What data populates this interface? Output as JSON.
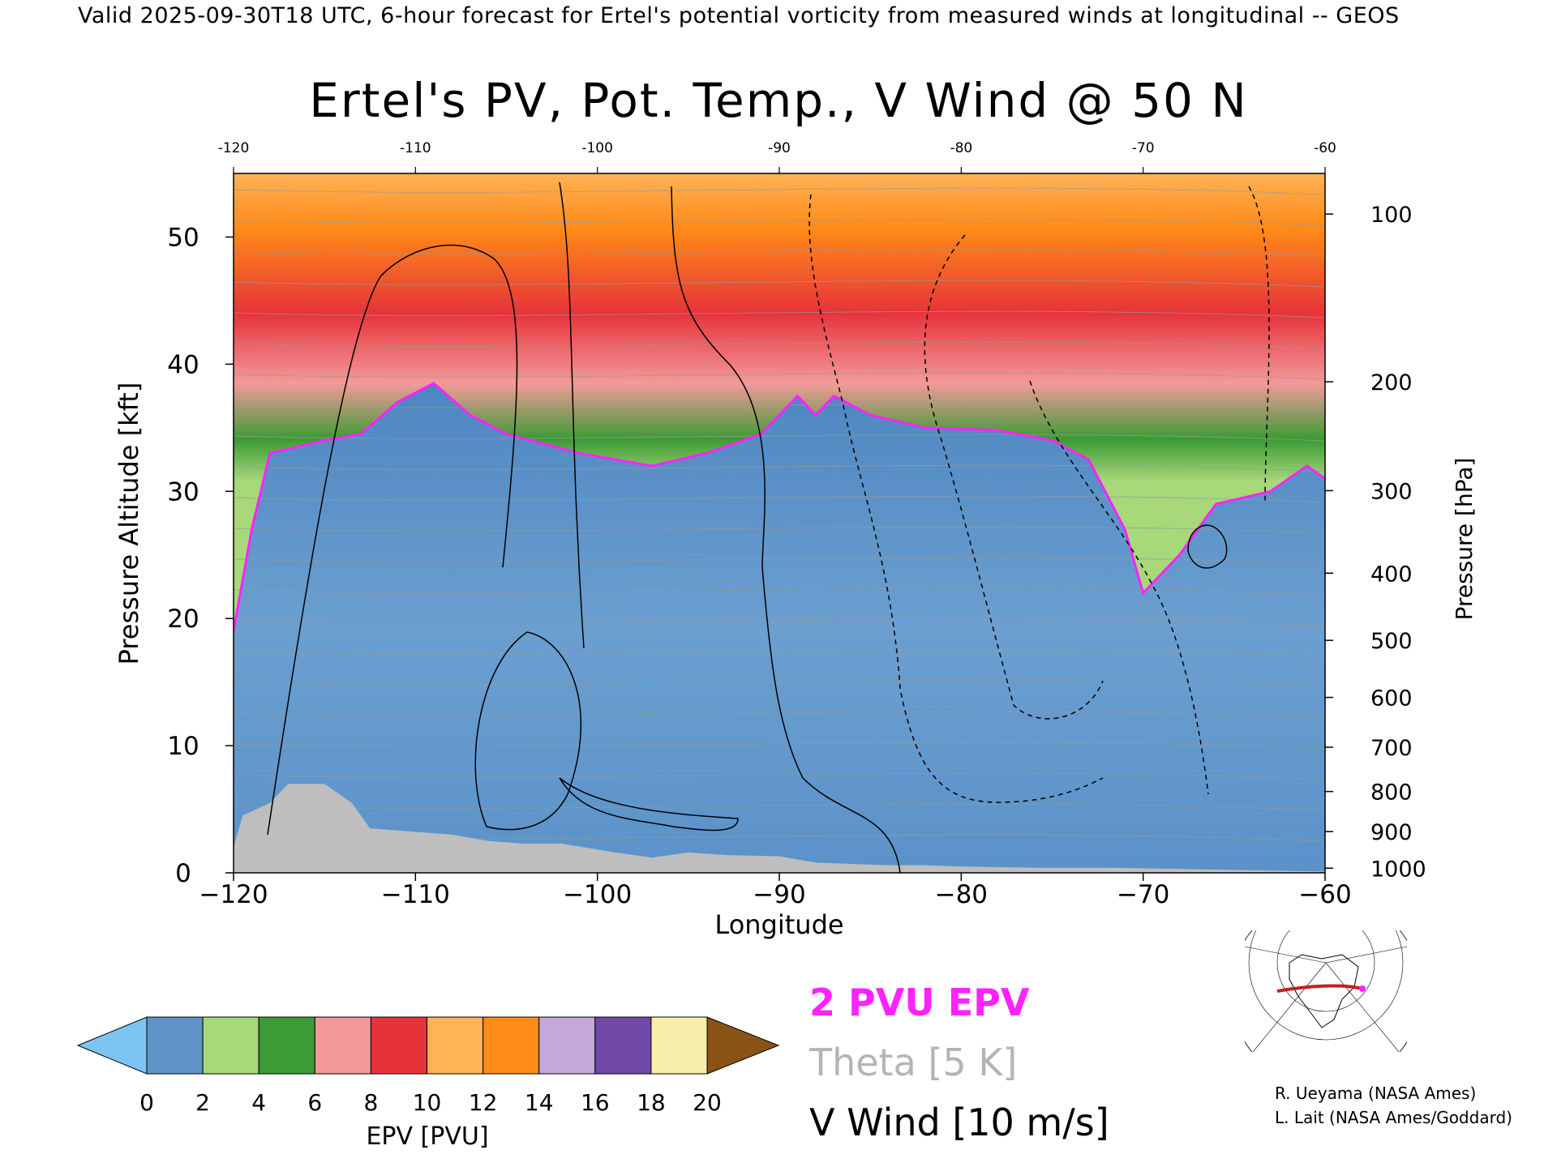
{
  "header": {
    "text": "Valid 2025-09-30T18 UTC, 6-hour forecast for Ertel's potential vorticity from measured winds at longitudinal -- GEOS"
  },
  "chart_data": {
    "type": "heatmap",
    "title": "Ertel's PV, Pot. Temp., V Wind @ 50 N",
    "xlabel": "Longitude",
    "ylabel": "Pressure Altitude [kft]",
    "y2label": "Pressure [hPa]",
    "xlim": [
      -120,
      -60
    ],
    "ylim": [
      0,
      55
    ],
    "x_ticks": [
      -120,
      -110,
      -100,
      -90,
      -80,
      -70,
      -60
    ],
    "x_tick_labels": [
      "−120",
      "−110",
      "−100",
      "−90",
      "−80",
      "−70",
      "−60"
    ],
    "top_ticks": [
      -120,
      -110,
      -100,
      -90,
      -80,
      -70,
      -60
    ],
    "top_tick_labels": [
      "-120",
      "-110",
      "-100",
      "-90",
      "-80",
      "-70",
      "-60"
    ],
    "y_ticks": [
      0,
      10,
      20,
      30,
      40,
      50
    ],
    "y_tick_labels": [
      "0",
      "10",
      "20",
      "30",
      "40",
      "50"
    ],
    "pressure_ticks": [
      {
        "hpa": 100,
        "label": "100"
      },
      {
        "hpa": 200,
        "label": "200"
      },
      {
        "hpa": 300,
        "label": "300"
      },
      {
        "hpa": 400,
        "label": "400"
      },
      {
        "hpa": 500,
        "label": "500"
      },
      {
        "hpa": 600,
        "label": "600"
      },
      {
        "hpa": 700,
        "label": "700"
      },
      {
        "hpa": 800,
        "label": "800"
      },
      {
        "hpa": 900,
        "label": "900"
      },
      {
        "hpa": 1000,
        "label": "1000"
      }
    ],
    "tropopause_2pvu": [
      [
        -120,
        19
      ],
      [
        -119,
        27
      ],
      [
        -118,
        33
      ],
      [
        -115,
        34
      ],
      [
        -113,
        34.5
      ],
      [
        -111,
        37
      ],
      [
        -109,
        38.5
      ],
      [
        -107,
        36
      ],
      [
        -105,
        34.5
      ],
      [
        -101,
        33
      ],
      [
        -97,
        32
      ],
      [
        -94,
        33
      ],
      [
        -91,
        34.5
      ],
      [
        -89,
        37.5
      ],
      [
        -88,
        36
      ],
      [
        -87,
        37.5
      ],
      [
        -85,
        36
      ],
      [
        -82,
        35
      ],
      [
        -78,
        34.8
      ],
      [
        -75,
        34
      ],
      [
        -73,
        32.5
      ],
      [
        -71,
        27
      ],
      [
        -70,
        22
      ],
      [
        -68,
        25
      ],
      [
        -66,
        29
      ],
      [
        -63,
        30
      ],
      [
        -61,
        32
      ],
      [
        -60,
        31
      ]
    ],
    "terrain": [
      [
        -120,
        2
      ],
      [
        -119.5,
        4.5
      ],
      [
        -118,
        5.5
      ],
      [
        -117,
        7
      ],
      [
        -115,
        7
      ],
      [
        -113.5,
        5.5
      ],
      [
        -112.5,
        3.5
      ],
      [
        -108,
        3
      ],
      [
        -106,
        2.5
      ],
      [
        -104,
        2.3
      ],
      [
        -102,
        2.3
      ],
      [
        -99,
        1.6
      ],
      [
        -97,
        1.2
      ],
      [
        -95,
        1.6
      ],
      [
        -93,
        1.4
      ],
      [
        -90,
        1.3
      ],
      [
        -88,
        0.8
      ],
      [
        -86,
        0.7
      ],
      [
        -84,
        0.6
      ],
      [
        -82,
        0.6
      ],
      [
        -80,
        0.5
      ],
      [
        -76,
        0.4
      ],
      [
        -72,
        0.4
      ],
      [
        -68,
        0.3
      ],
      [
        -64,
        0.2
      ],
      [
        -60,
        0.1
      ]
    ],
    "colorbar": {
      "label": "EPV [PVU]",
      "tick_labels": [
        "0",
        "2",
        "4",
        "6",
        "8",
        "10",
        "12",
        "14",
        "16",
        "18",
        "20"
      ],
      "colors": [
        "#5f93c8",
        "#a7d87a",
        "#3c9b35",
        "#f29a9a",
        "#e6333a",
        "#ffb256",
        "#ff8a18",
        "#c4a8d8",
        "#704aa6",
        "#f7eeaa"
      ],
      "under_color": "#7cc4f1",
      "over_color": "#8a5314"
    },
    "legend": {
      "pvu": "2 PVU EPV",
      "theta": "Theta [5 K]",
      "vwind": "V Wind [10 m/s]"
    },
    "colors": {
      "pvu_contour": "#ff22ff",
      "theta_contour": "#9a9a9a",
      "terrain": "#bebebe"
    }
  },
  "credits": {
    "line1": "R. Ueyama (NASA Ames)",
    "line2": "L. Lait (NASA Ames/Goddard)"
  }
}
